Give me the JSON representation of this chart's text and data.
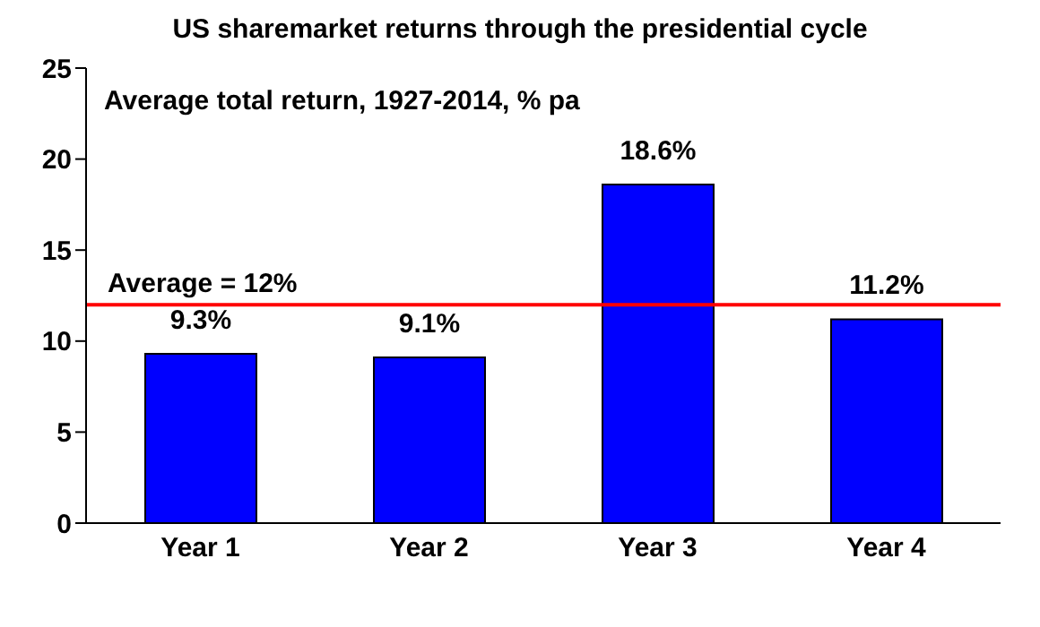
{
  "chart_data": {
    "type": "bar",
    "title": "US sharemarket returns through the presidential cycle",
    "annotations": [
      "Average total return, 1927-2014, % pa"
    ],
    "categories": [
      "Year 1",
      "Year 2",
      "Year 3",
      "Year 4"
    ],
    "values": [
      9.3,
      9.1,
      18.6,
      11.2
    ],
    "value_labels": [
      "9.3%",
      "9.1%",
      "18.6%",
      "11.2%"
    ],
    "color": "#0000ff",
    "ylim": [
      0,
      25
    ],
    "yticks": [
      0,
      5,
      10,
      15,
      20,
      25
    ],
    "grid": false,
    "legend": false,
    "ref_lines": [
      {
        "axis": "y",
        "value": 12,
        "label": "Average = 12%",
        "color": "#ff0000"
      }
    ]
  }
}
